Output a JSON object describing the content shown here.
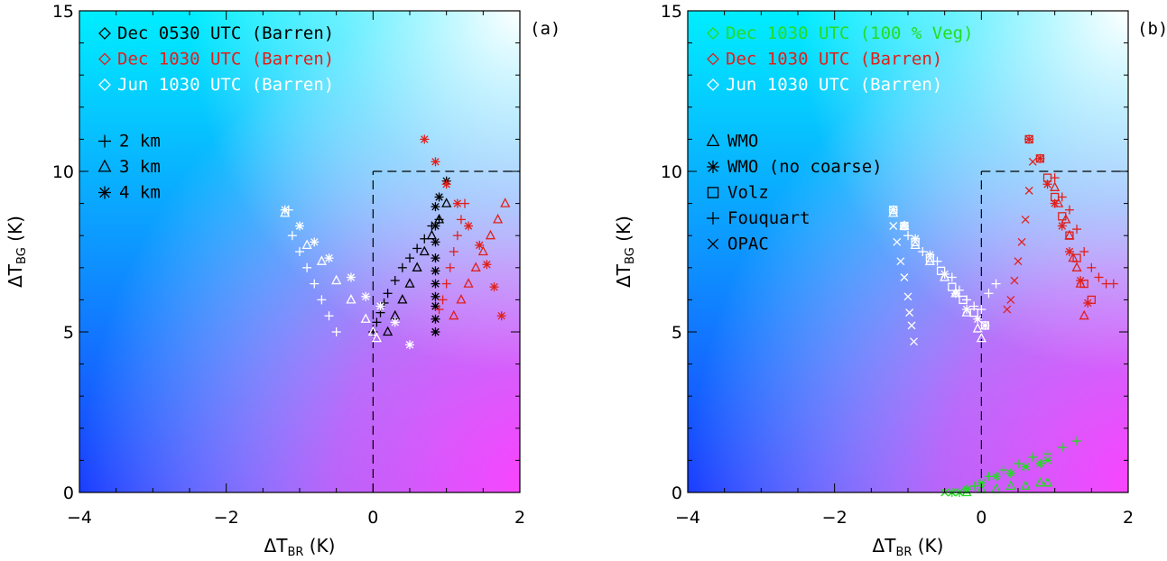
{
  "chart_data": [
    {
      "type": "scatter",
      "panel_label": "(a)",
      "xlabel": {
        "delta": "Δ",
        "main": "T",
        "sub": "BR",
        "unit": " (K)"
      },
      "ylabel": {
        "delta": "Δ",
        "main": "T",
        "sub": "BG",
        "unit": " (K)"
      },
      "xlim": [
        -4,
        2
      ],
      "ylim": [
        0,
        15
      ],
      "x_ticks": [
        "−4",
        "−2",
        "0",
        "2"
      ],
      "y_ticks": [
        "0",
        "5",
        "10",
        "15"
      ],
      "background": "gradient",
      "grid": false,
      "reference_box": {
        "x": [
          0,
          2
        ],
        "y": [
          0,
          10
        ],
        "style": "dashed"
      },
      "legend_placement": "top-left",
      "legend_colors": [
        {
          "label": "Dec 0530 UTC (Barren)",
          "color": "#000000"
        },
        {
          "label": "Dec 1030 UTC (Barren)",
          "color": "#e0201a"
        },
        {
          "label": "Jun 1030 UTC (Barren)",
          "color": "#ffffff"
        }
      ],
      "legend_symbols": [
        {
          "label": "2 km",
          "marker": "plus"
        },
        {
          "label": "3 km",
          "marker": "triangle"
        },
        {
          "label": "4 km",
          "marker": "star"
        }
      ],
      "series": [
        {
          "condition": 0,
          "marker": "plus",
          "x": [
            0.0,
            0.05,
            0.1,
            0.15,
            0.2,
            0.3,
            0.4,
            0.5,
            0.6,
            0.7,
            0.8,
            0.9
          ],
          "y": [
            5.0,
            5.3,
            5.6,
            5.9,
            6.2,
            6.6,
            7.0,
            7.3,
            7.6,
            7.9,
            8.3,
            8.5
          ]
        },
        {
          "condition": 0,
          "marker": "triangle",
          "x": [
            0.2,
            0.3,
            0.4,
            0.5,
            0.6,
            0.7,
            0.8,
            0.9,
            1.0
          ],
          "y": [
            5.0,
            5.5,
            6.0,
            6.5,
            7.0,
            7.5,
            8.0,
            8.5,
            9.0
          ]
        },
        {
          "condition": 0,
          "marker": "star",
          "x": [
            0.85,
            0.85,
            0.85,
            0.85,
            0.85,
            0.85,
            0.85,
            0.85,
            0.85,
            0.85,
            0.9,
            1.0
          ],
          "y": [
            5.0,
            5.4,
            5.8,
            6.1,
            6.5,
            6.9,
            7.3,
            7.8,
            8.3,
            8.9,
            9.2,
            9.7
          ]
        },
        {
          "condition": 1,
          "marker": "plus",
          "x": [
            0.9,
            0.95,
            1.0,
            1.05,
            1.1,
            1.15,
            1.2,
            1.25
          ],
          "y": [
            5.7,
            6.0,
            6.5,
            7.0,
            7.5,
            8.0,
            8.5,
            9.0
          ]
        },
        {
          "condition": 1,
          "marker": "triangle",
          "x": [
            1.1,
            1.2,
            1.3,
            1.4,
            1.5,
            1.6,
            1.7,
            1.8
          ],
          "y": [
            5.5,
            6.0,
            6.5,
            7.0,
            7.5,
            8.0,
            8.5,
            9.0
          ]
        },
        {
          "condition": 1,
          "marker": "star",
          "x": [
            0.7,
            0.85,
            1.0,
            1.15,
            1.3,
            1.45,
            1.55,
            1.65,
            1.75
          ],
          "y": [
            11.0,
            10.3,
            9.6,
            9.0,
            8.3,
            7.7,
            7.1,
            6.4,
            5.5
          ]
        },
        {
          "condition": 2,
          "marker": "plus",
          "x": [
            -1.15,
            -1.1,
            -1.0,
            -0.9,
            -0.8,
            -0.7,
            -0.6,
            -0.5
          ],
          "y": [
            8.8,
            8.0,
            7.5,
            7.0,
            6.5,
            6.0,
            5.5,
            5.0
          ]
        },
        {
          "condition": 2,
          "marker": "triangle",
          "x": [
            -1.2,
            -0.9,
            -0.7,
            -0.5,
            -0.3,
            -0.1,
            0.0,
            0.05
          ],
          "y": [
            8.7,
            7.7,
            7.2,
            6.6,
            6.0,
            5.4,
            5.0,
            4.8
          ]
        },
        {
          "condition": 2,
          "marker": "star",
          "x": [
            -1.2,
            -1.0,
            -0.8,
            -0.6,
            -0.3,
            -0.1,
            0.1,
            0.3,
            0.5
          ],
          "y": [
            8.8,
            8.3,
            7.8,
            7.3,
            6.7,
            6.1,
            5.8,
            5.3,
            4.6
          ]
        }
      ]
    },
    {
      "type": "scatter",
      "panel_label": "(b)",
      "xlabel": {
        "delta": "Δ",
        "main": "T",
        "sub": "BR",
        "unit": " (K)"
      },
      "ylabel": {
        "delta": "Δ",
        "main": "T",
        "sub": "BG",
        "unit": " (K)"
      },
      "xlim": [
        -4,
        2
      ],
      "ylim": [
        0,
        15
      ],
      "x_ticks": [
        "−4",
        "−2",
        "0",
        "2"
      ],
      "y_ticks": [
        "0",
        "5",
        "10",
        "15"
      ],
      "background": "gradient",
      "grid": false,
      "reference_box": {
        "x": [
          0,
          2
        ],
        "y": [
          0,
          10
        ],
        "style": "dashed"
      },
      "legend_placement": "top-left",
      "legend_colors": [
        {
          "label": "Dec 1030 UTC (100 % Veg)",
          "color": "#22dd22"
        },
        {
          "label": "Dec 1030 UTC (Barren)",
          "color": "#e0201a"
        },
        {
          "label": "Jun 1030 UTC (Barren)",
          "color": "#ffffff"
        }
      ],
      "legend_symbols": [
        {
          "label": "WMO",
          "marker": "triangle"
        },
        {
          "label": "WMO (no coarse)",
          "marker": "star"
        },
        {
          "label": "Volz",
          "marker": "square"
        },
        {
          "label": "Fouquart",
          "marker": "plus"
        },
        {
          "label": "OPAC",
          "marker": "cross"
        }
      ],
      "series": [
        {
          "condition": 0,
          "marker": "plus",
          "x": [
            -0.3,
            -0.1,
            0.1,
            0.3,
            0.5,
            0.7,
            0.9,
            1.1,
            1.3
          ],
          "y": [
            0.0,
            0.2,
            0.5,
            0.7,
            0.9,
            1.1,
            1.2,
            1.4,
            1.6
          ]
        },
        {
          "condition": 0,
          "marker": "star",
          "x": [
            -0.4,
            -0.2,
            0.0,
            0.2,
            0.4,
            0.6,
            0.8,
            0.9
          ],
          "y": [
            0.0,
            0.1,
            0.3,
            0.5,
            0.6,
            0.8,
            0.9,
            1.0
          ]
        },
        {
          "condition": 0,
          "marker": "triangle",
          "x": [
            -0.2,
            0.0,
            0.2,
            0.4,
            0.6,
            0.8,
            0.9
          ],
          "y": [
            0.0,
            0.1,
            0.1,
            0.2,
            0.2,
            0.3,
            0.3
          ]
        },
        {
          "condition": 0,
          "marker": "cross",
          "x": [
            -0.5,
            -0.4,
            -0.3,
            -0.2
          ],
          "y": [
            0.0,
            0.0,
            0.0,
            0.05
          ]
        },
        {
          "condition": 1,
          "marker": "triangle",
          "x": [
            1.0,
            1.05,
            1.15,
            1.2,
            1.25,
            1.3,
            1.35,
            1.4
          ],
          "y": [
            9.5,
            9.0,
            8.5,
            8.0,
            7.3,
            7.0,
            6.5,
            5.5
          ]
        },
        {
          "condition": 1,
          "marker": "star",
          "x": [
            0.65,
            0.8,
            0.9,
            1.0,
            1.1,
            1.2,
            1.35,
            1.45
          ],
          "y": [
            11.0,
            10.4,
            9.6,
            9.0,
            8.3,
            7.5,
            6.6,
            5.9
          ]
        },
        {
          "condition": 1,
          "marker": "square",
          "x": [
            0.65,
            0.8,
            0.9,
            1.0,
            1.1,
            1.2,
            1.3,
            1.4,
            1.5
          ],
          "y": [
            11.0,
            10.4,
            9.8,
            9.2,
            8.6,
            8.0,
            7.3,
            6.5,
            6.0
          ]
        },
        {
          "condition": 1,
          "marker": "plus",
          "x": [
            1.0,
            1.1,
            1.2,
            1.3,
            1.4,
            1.5,
            1.6,
            1.7,
            1.8
          ],
          "y": [
            9.8,
            9.2,
            8.8,
            8.2,
            7.5,
            7.0,
            6.7,
            6.5,
            6.5
          ]
        },
        {
          "condition": 1,
          "marker": "cross",
          "x": [
            0.7,
            0.65,
            0.6,
            0.55,
            0.5,
            0.45,
            0.4,
            0.35
          ],
          "y": [
            10.3,
            9.4,
            8.5,
            7.8,
            7.2,
            6.6,
            6.0,
            5.7
          ]
        },
        {
          "condition": 2,
          "marker": "triangle",
          "x": [
            -1.2,
            -1.05,
            -0.9,
            -0.7,
            -0.5,
            -0.35,
            -0.2,
            -0.05,
            0.0
          ],
          "y": [
            8.7,
            8.3,
            7.7,
            7.2,
            6.7,
            6.2,
            5.6,
            5.1,
            4.8
          ]
        },
        {
          "condition": 2,
          "marker": "star",
          "x": [
            -1.2,
            -1.05,
            -0.9,
            -0.7,
            -0.5,
            -0.35,
            -0.2,
            -0.05,
            0.05
          ],
          "y": [
            8.8,
            8.3,
            7.9,
            7.4,
            6.8,
            6.2,
            5.7,
            5.4,
            5.2
          ]
        },
        {
          "condition": 2,
          "marker": "square",
          "x": [
            -1.2,
            -1.05,
            -0.9,
            -0.7,
            -0.55,
            -0.4,
            -0.25,
            -0.1,
            0.05
          ],
          "y": [
            8.8,
            8.3,
            7.8,
            7.3,
            6.9,
            6.4,
            6.0,
            5.6,
            5.2
          ]
        },
        {
          "condition": 2,
          "marker": "plus",
          "x": [
            -1.0,
            -0.8,
            -0.6,
            -0.4,
            -0.3,
            -0.2,
            -0.1,
            0.0,
            0.1,
            0.2
          ],
          "y": [
            8.0,
            7.5,
            7.2,
            6.7,
            6.3,
            6.0,
            5.8,
            5.7,
            6.2,
            6.5
          ]
        },
        {
          "condition": 2,
          "marker": "cross",
          "x": [
            -1.2,
            -1.15,
            -1.1,
            -1.05,
            -1.0,
            -0.98,
            -0.95,
            -0.92
          ],
          "y": [
            8.3,
            7.8,
            7.2,
            6.7,
            6.1,
            5.6,
            5.2,
            4.7
          ]
        }
      ]
    }
  ]
}
